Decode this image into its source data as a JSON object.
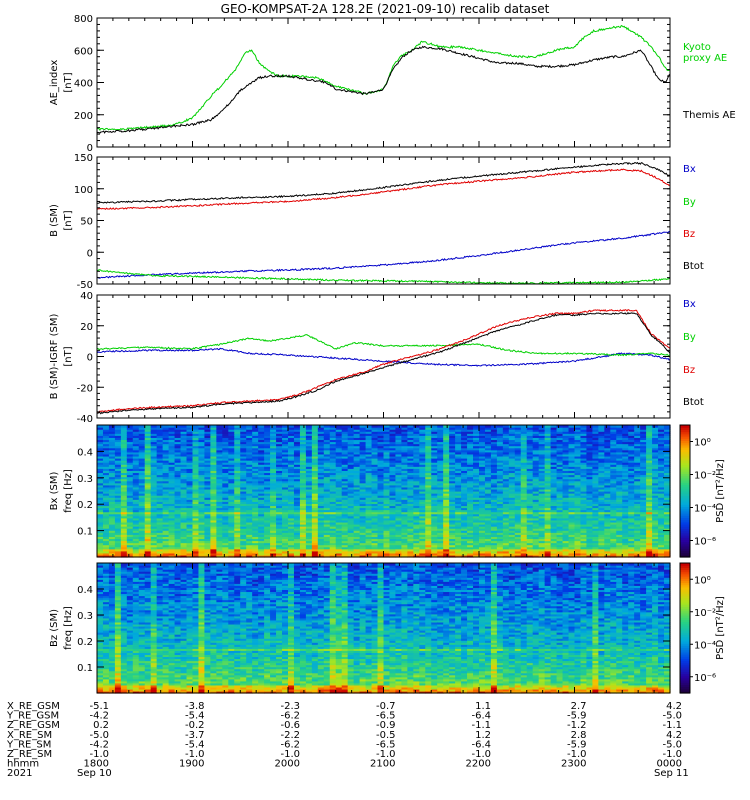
{
  "title": "GEO-KOMPSAT-2A 128.2E (2021-09-10) recalib dataset",
  "colors": {
    "black": "#000000",
    "red": "#e00000",
    "green": "#00d000",
    "blue": "#0000c8"
  },
  "chart_data": [
    {
      "id": "ae",
      "type": "line",
      "ylabel": "AE_index [nT]",
      "ylabel_lines": [
        "AE_index",
        "[nT]"
      ],
      "ylim": [
        0,
        800
      ],
      "yticks": [
        0,
        200,
        400,
        600,
        800
      ],
      "series": [
        {
          "name": "Kyoto proxy AE",
          "label_lines": [
            "Kyoto",
            "proxy AE"
          ],
          "color": "#00d000",
          "x": [
            18.0,
            18.25,
            18.5,
            18.8,
            19.0,
            19.1,
            19.2,
            19.3,
            19.45,
            19.55,
            19.62,
            19.7,
            19.8,
            19.9,
            20.0,
            20.1,
            20.3,
            20.5,
            20.6,
            20.7,
            20.8,
            20.9,
            21.0,
            21.05,
            21.1,
            21.2,
            21.3,
            21.4,
            21.5,
            21.6,
            21.7,
            21.8,
            22.0,
            22.2,
            22.4,
            22.6,
            22.8,
            23.0,
            23.1,
            23.2,
            23.4,
            23.5,
            23.6,
            23.7,
            23.8,
            23.88,
            23.95,
            24.0
          ],
          "y": [
            110,
            110,
            120,
            135,
            180,
            250,
            320,
            380,
            480,
            580,
            600,
            520,
            470,
            440,
            440,
            440,
            430,
            380,
            360,
            350,
            330,
            340,
            360,
            420,
            510,
            570,
            600,
            650,
            640,
            620,
            620,
            620,
            600,
            580,
            560,
            560,
            600,
            620,
            680,
            720,
            740,
            750,
            720,
            680,
            620,
            560,
            490,
            470
          ]
        },
        {
          "name": "Themis AE",
          "label_lines": [
            "Themis AE"
          ],
          "color": "#000000",
          "x": [
            18.0,
            18.3,
            18.6,
            18.8,
            19.0,
            19.2,
            19.3,
            19.4,
            19.5,
            19.6,
            19.7,
            19.8,
            20.0,
            20.2,
            20.4,
            20.5,
            20.6,
            20.7,
            20.8,
            20.9,
            21.0,
            21.05,
            21.1,
            21.2,
            21.3,
            21.4,
            21.6,
            21.8,
            22.0,
            22.2,
            22.4,
            22.6,
            22.8,
            23.0,
            23.2,
            23.4,
            23.5,
            23.6,
            23.7,
            23.8,
            23.88,
            23.95,
            24.0
          ],
          "y": [
            90,
            100,
            115,
            130,
            140,
            170,
            220,
            280,
            350,
            390,
            430,
            440,
            440,
            420,
            400,
            360,
            350,
            340,
            330,
            340,
            360,
            420,
            480,
            560,
            600,
            620,
            610,
            580,
            550,
            520,
            520,
            500,
            500,
            510,
            540,
            560,
            560,
            580,
            600,
            500,
            420,
            400,
            450
          ]
        }
      ]
    },
    {
      "id": "bsm",
      "type": "line",
      "ylabel": "B (SM) [nT]",
      "ylabel_lines": [
        "B (SM)",
        "[nT]"
      ],
      "ylim": [
        -50,
        150
      ],
      "yticks": [
        -50,
        0,
        50,
        100,
        150
      ],
      "series": [
        {
          "name": "Bx",
          "color": "#0000c8",
          "x": [
            18.0,
            18.5,
            19.0,
            19.5,
            20.0,
            20.5,
            21.0,
            21.5,
            22.0,
            22.5,
            23.0,
            23.5,
            23.8,
            24.0
          ],
          "y": [
            -40,
            -36,
            -33,
            -30,
            -28,
            -25,
            -20,
            -14,
            -5,
            5,
            15,
            22,
            28,
            32
          ]
        },
        {
          "name": "By",
          "color": "#00d000",
          "x": [
            18.0,
            18.3,
            18.6,
            19.0,
            19.5,
            20.0,
            20.5,
            21.0,
            21.5,
            22.0,
            22.5,
            23.0,
            23.5,
            23.8,
            24.0
          ],
          "y": [
            -28,
            -33,
            -37,
            -38,
            -40,
            -42,
            -44,
            -45,
            -46,
            -48,
            -49,
            -48,
            -47,
            -44,
            -42
          ]
        },
        {
          "name": "Bz",
          "color": "#e00000",
          "x": [
            18.0,
            18.5,
            19.0,
            19.5,
            20.0,
            20.5,
            21.0,
            21.5,
            22.0,
            22.5,
            23.0,
            23.5,
            23.7,
            23.85,
            24.0
          ],
          "y": [
            68,
            70,
            73,
            77,
            80,
            86,
            95,
            105,
            112,
            118,
            126,
            130,
            128,
            118,
            105
          ]
        },
        {
          "name": "Btot",
          "color": "#000000",
          "x": [
            18.0,
            18.5,
            19.0,
            19.5,
            20.0,
            20.5,
            21.0,
            21.5,
            22.0,
            22.5,
            23.0,
            23.5,
            23.7,
            23.85,
            24.0
          ],
          "y": [
            78,
            80,
            83,
            86,
            88,
            93,
            102,
            112,
            120,
            127,
            134,
            140,
            140,
            132,
            120
          ]
        }
      ]
    },
    {
      "id": "bigrf",
      "type": "line",
      "ylabel": "B (SM)-IGRF (SM) [nT]",
      "ylabel_lines": [
        "B (SM)-IGRF (SM)",
        "[nT]"
      ],
      "ylim": [
        -40,
        40
      ],
      "yticks": [
        -40,
        -20,
        0,
        20,
        40
      ],
      "series": [
        {
          "name": "Bx",
          "color": "#0000c8",
          "x": [
            18.0,
            18.5,
            19.0,
            19.3,
            19.6,
            20.0,
            20.5,
            21.0,
            21.5,
            22.0,
            22.5,
            23.0,
            23.5,
            23.8,
            24.0
          ],
          "y": [
            3,
            4,
            4,
            5,
            2,
            1,
            -1,
            -3,
            -5,
            -6,
            -5,
            -3,
            2,
            1,
            -2
          ]
        },
        {
          "name": "By",
          "color": "#00d000",
          "x": [
            18.0,
            18.5,
            19.0,
            19.3,
            19.6,
            19.8,
            20.0,
            20.2,
            20.5,
            20.7,
            21.0,
            21.5,
            22.0,
            22.3,
            22.6,
            23.0,
            23.5,
            23.8,
            24.0
          ],
          "y": [
            5,
            6,
            5,
            8,
            12,
            10,
            12,
            14,
            5,
            9,
            7,
            7,
            8,
            4,
            2,
            2,
            1,
            2,
            1
          ]
        },
        {
          "name": "Bz",
          "color": "#e00000",
          "x": [
            18.0,
            18.3,
            18.6,
            19.0,
            19.3,
            19.6,
            19.9,
            20.1,
            20.3,
            20.5,
            20.8,
            21.0,
            21.3,
            21.6,
            21.9,
            22.2,
            22.5,
            22.8,
            23.0,
            23.2,
            23.4,
            23.5,
            23.65,
            23.8,
            23.9,
            24.0
          ],
          "y": [
            -36,
            -34,
            -33,
            -32,
            -30,
            -29,
            -28,
            -25,
            -20,
            -15,
            -10,
            -5,
            0,
            5,
            12,
            20,
            25,
            28,
            28,
            30,
            30,
            30,
            30,
            15,
            10,
            5
          ]
        },
        {
          "name": "Btot",
          "color": "#000000",
          "x": [
            18.0,
            18.3,
            18.6,
            19.0,
            19.3,
            19.6,
            19.9,
            20.1,
            20.3,
            20.5,
            20.8,
            21.0,
            21.3,
            21.6,
            21.9,
            22.2,
            22.5,
            22.8,
            23.0,
            23.2,
            23.4,
            23.5,
            23.65,
            23.8,
            23.9,
            24.0
          ],
          "y": [
            -37,
            -35,
            -34,
            -33,
            -31,
            -30,
            -29,
            -26,
            -22,
            -16,
            -11,
            -7,
            -2,
            3,
            10,
            17,
            22,
            27,
            27,
            28,
            28,
            28,
            28,
            14,
            9,
            2
          ]
        }
      ]
    },
    {
      "id": "spec_bx",
      "type": "heatmap",
      "ylabel_lines": [
        "Bx (SM)",
        "freq [Hz]"
      ],
      "ylim": [
        0,
        0.5
      ],
      "yticks": [
        0.1,
        0.2,
        0.3,
        0.4
      ],
      "colorbar_label": "PSD [nT²/Hz]",
      "colorbar_ticks": [
        "10⁰",
        "10⁻²",
        "10⁻⁴",
        "10⁻⁶"
      ],
      "zlim_log": [
        -7,
        1
      ]
    },
    {
      "id": "spec_bz",
      "type": "heatmap",
      "ylabel_lines": [
        "Bz (SM)",
        "freq [Hz]"
      ],
      "ylim": [
        0,
        0.5
      ],
      "yticks": [
        0.1,
        0.2,
        0.3,
        0.4
      ],
      "colorbar_label": "PSD [nT²/Hz]",
      "colorbar_ticks": [
        "10⁰",
        "10⁻²",
        "10⁻⁴",
        "10⁻⁶"
      ],
      "zlim_log": [
        -7,
        1
      ]
    }
  ],
  "x_axis": {
    "xlim": [
      18,
      24
    ],
    "ephemeris": [
      {
        "label": "X_RE_GSM",
        "values": [
          "-5.1",
          "-3.8",
          "-2.3",
          "-0.7",
          "1.1",
          "2.7",
          "4.2"
        ]
      },
      {
        "label": "Y_RE_GSM",
        "values": [
          "-4.2",
          "-5.4",
          "-6.2",
          "-6.5",
          "-6.4",
          "-5.9",
          "-5.0"
        ]
      },
      {
        "label": "Z_RE_GSM",
        "values": [
          "0.2",
          "-0.2",
          "-0.6",
          "-0.9",
          "-1.1",
          "-1.2",
          "-1.1"
        ]
      },
      {
        "label": "X_RE_SM",
        "values": [
          "-5.0",
          "-3.7",
          "-2.2",
          "-0.5",
          "1.2",
          "2.8",
          "4.2"
        ]
      },
      {
        "label": "Y_RE_SM",
        "values": [
          "-4.2",
          "-5.4",
          "-6.2",
          "-6.5",
          "-6.4",
          "-5.9",
          "-5.0"
        ]
      },
      {
        "label": "Z_RE_SM",
        "values": [
          "-1.0",
          "-1.0",
          "-1.0",
          "-1.0",
          "-1.0",
          "-1.0",
          "-1.0"
        ]
      },
      {
        "label": "hhmm",
        "values": [
          "1800",
          "1900",
          "2000",
          "2100",
          "2200",
          "2300",
          "0000"
        ]
      }
    ],
    "year_label": "2021",
    "date_start": "Sep 10",
    "date_end": "Sep 11"
  }
}
